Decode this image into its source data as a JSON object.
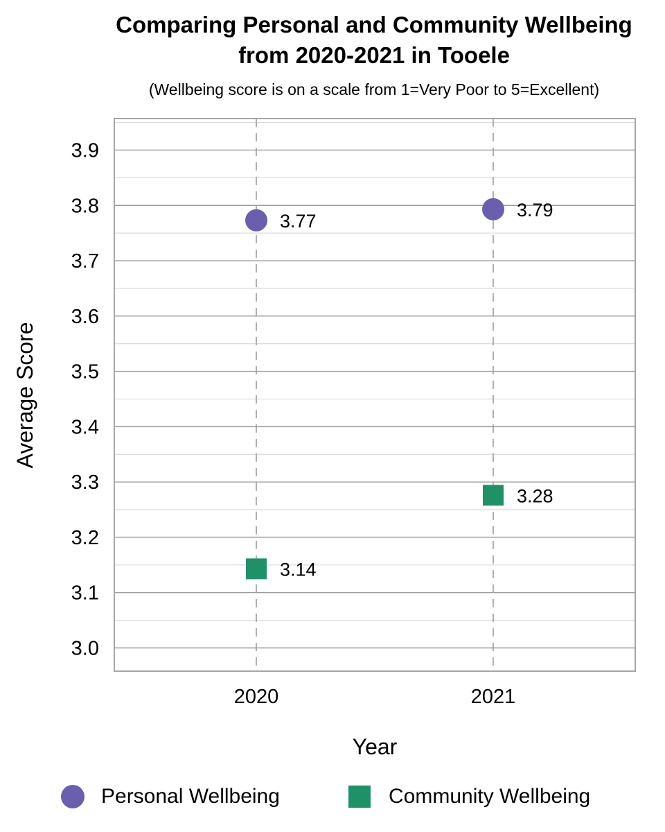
{
  "chart_data": {
    "type": "scatter",
    "title": "Comparing Personal and Community Wellbeing from 2020-2021 in Tooele",
    "title_lines": [
      "Comparing Personal and Community Wellbeing",
      "from 2020-2021 in Tooele"
    ],
    "subtitle": "(Wellbeing score is on a scale from 1=Very Poor to 5=Excellent)",
    "xlabel": "Year",
    "ylabel": "Average Score",
    "categories": [
      "2020",
      "2021"
    ],
    "ylim": [
      2.958,
      3.957
    ],
    "yticks": [
      "3.0",
      "3.1",
      "3.2",
      "3.3",
      "3.4",
      "3.5",
      "3.6",
      "3.7",
      "3.8",
      "3.9"
    ],
    "grid": true,
    "legend_position": "bottom",
    "series": [
      {
        "name": "Personal Wellbeing",
        "marker": "circle",
        "color": "#6a5fae",
        "values": [
          3.773,
          3.793
        ],
        "labels": [
          "3.77",
          "3.79"
        ]
      },
      {
        "name": "Community Wellbeing",
        "marker": "square",
        "color": "#1e9167",
        "values": [
          3.143,
          3.276
        ],
        "labels": [
          "3.14",
          "3.28"
        ]
      }
    ]
  }
}
